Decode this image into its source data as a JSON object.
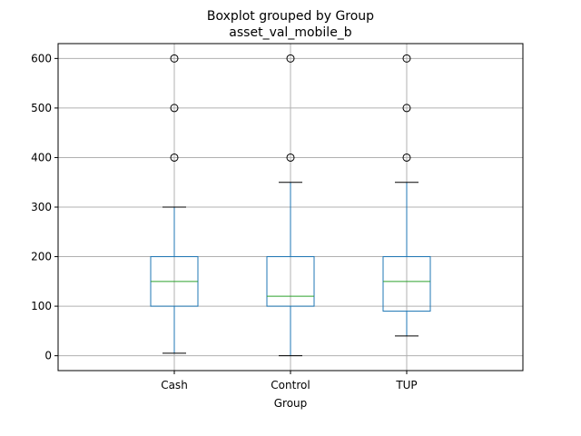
{
  "chart_data": {
    "type": "boxplot",
    "title": "Boxplot grouped by Group",
    "subtitle": "asset_val_mobile_b",
    "xlabel": "Group",
    "ylabel": "",
    "ylim": [
      -30,
      630
    ],
    "yticks": [
      0,
      100,
      200,
      300,
      400,
      500,
      600
    ],
    "grid": true,
    "categories": [
      "Cash",
      "Control",
      "TUP"
    ],
    "boxes": [
      {
        "category": "Cash",
        "whisker_low": 5,
        "q1": 100,
        "median": 150,
        "q3": 200,
        "whisker_high": 300,
        "outliers": [
          400,
          500,
          600
        ]
      },
      {
        "category": "Control",
        "whisker_low": 0,
        "q1": 100,
        "median": 120,
        "q3": 200,
        "whisker_high": 350,
        "outliers": [
          400,
          600
        ]
      },
      {
        "category": "TUP",
        "whisker_low": 40,
        "q1": 90,
        "median": 150,
        "q3": 200,
        "whisker_high": 350,
        "outliers": [
          400,
          500,
          600
        ]
      }
    ],
    "colors": {
      "box": "#1f77b4",
      "median": "#2ca02c",
      "whisker_cap": "#000000",
      "outlier": "#000000",
      "grid": "#b0b0b0"
    }
  }
}
